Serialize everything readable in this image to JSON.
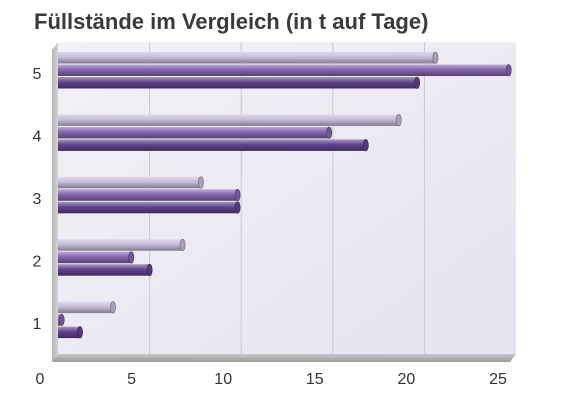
{
  "chart_data": {
    "type": "bar",
    "orientation": "horizontal",
    "title": "Füllstände im Vergleich (in t auf Tage)",
    "xlabel": "",
    "ylabel": "",
    "categories": [
      "1",
      "2",
      "3",
      "4",
      "5"
    ],
    "xlim": [
      0,
      25
    ],
    "xticks": [
      "0",
      "5",
      "10",
      "15",
      "20",
      "25"
    ],
    "grid": true,
    "legend": "none",
    "series": [
      {
        "values": [
          3,
          6.8,
          7.8,
          18.6,
          20.6
        ],
        "color": "#c5bcd9"
      },
      {
        "values": [
          0.2,
          4,
          9.8,
          14.8,
          24.6
        ],
        "color": "#8466b0"
      },
      {
        "values": [
          1.2,
          5,
          9.8,
          16.8,
          19.6
        ],
        "color": "#5f448d"
      }
    ]
  }
}
